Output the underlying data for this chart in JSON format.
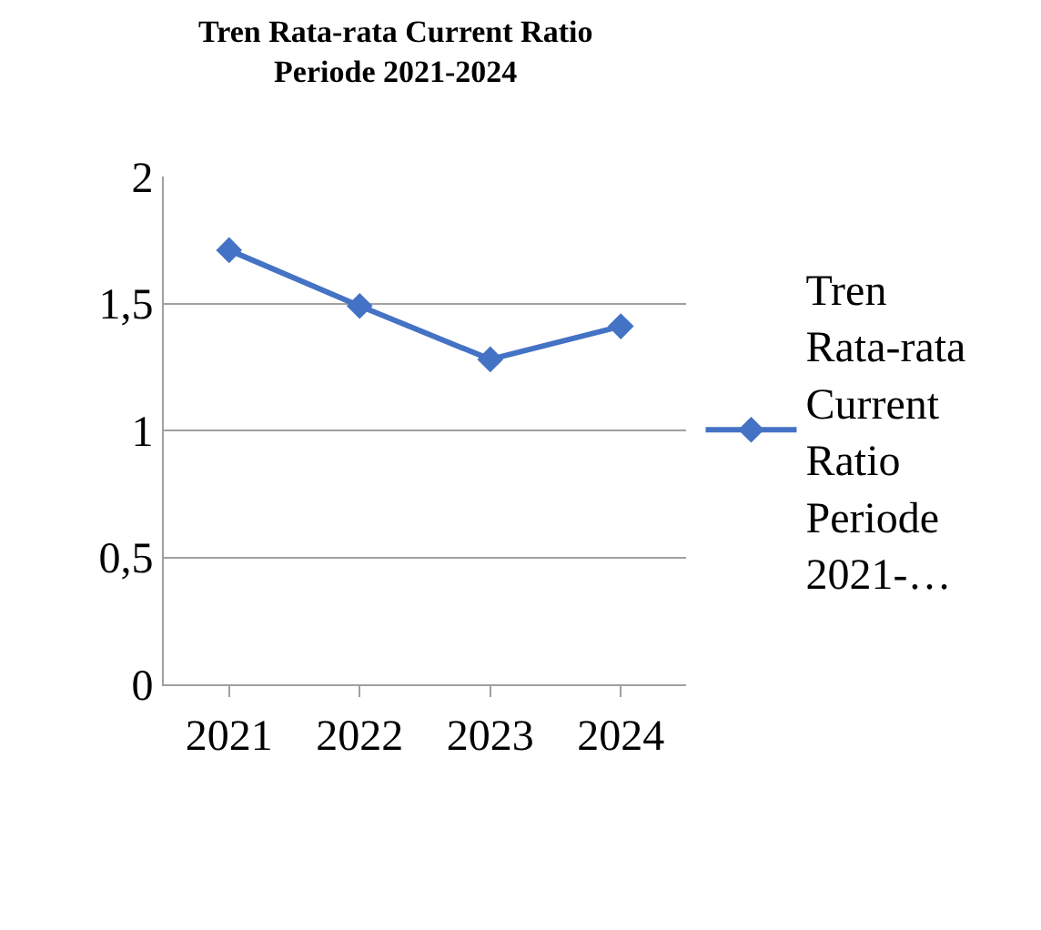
{
  "chart_data": {
    "type": "line",
    "title": "Tren Rata-rata Current Ratio\nPeriode 2021-2024",
    "categories": [
      "2021",
      "2022",
      "2023",
      "2024"
    ],
    "series": [
      {
        "name": "Tren Rata-rata Current Ratio Periode 2021-…",
        "color": "#4472c4",
        "values": [
          1.71,
          1.49,
          1.28,
          1.41
        ]
      }
    ],
    "ylim": [
      0,
      2
    ],
    "yticks": [
      0,
      {
        "value": 0.5,
        "label": "0,5"
      },
      1,
      {
        "value": 1.5,
        "label": "1,5"
      },
      2
    ],
    "grid": "y",
    "legend": "right",
    "marker": "diamond",
    "line_style": "solid"
  }
}
